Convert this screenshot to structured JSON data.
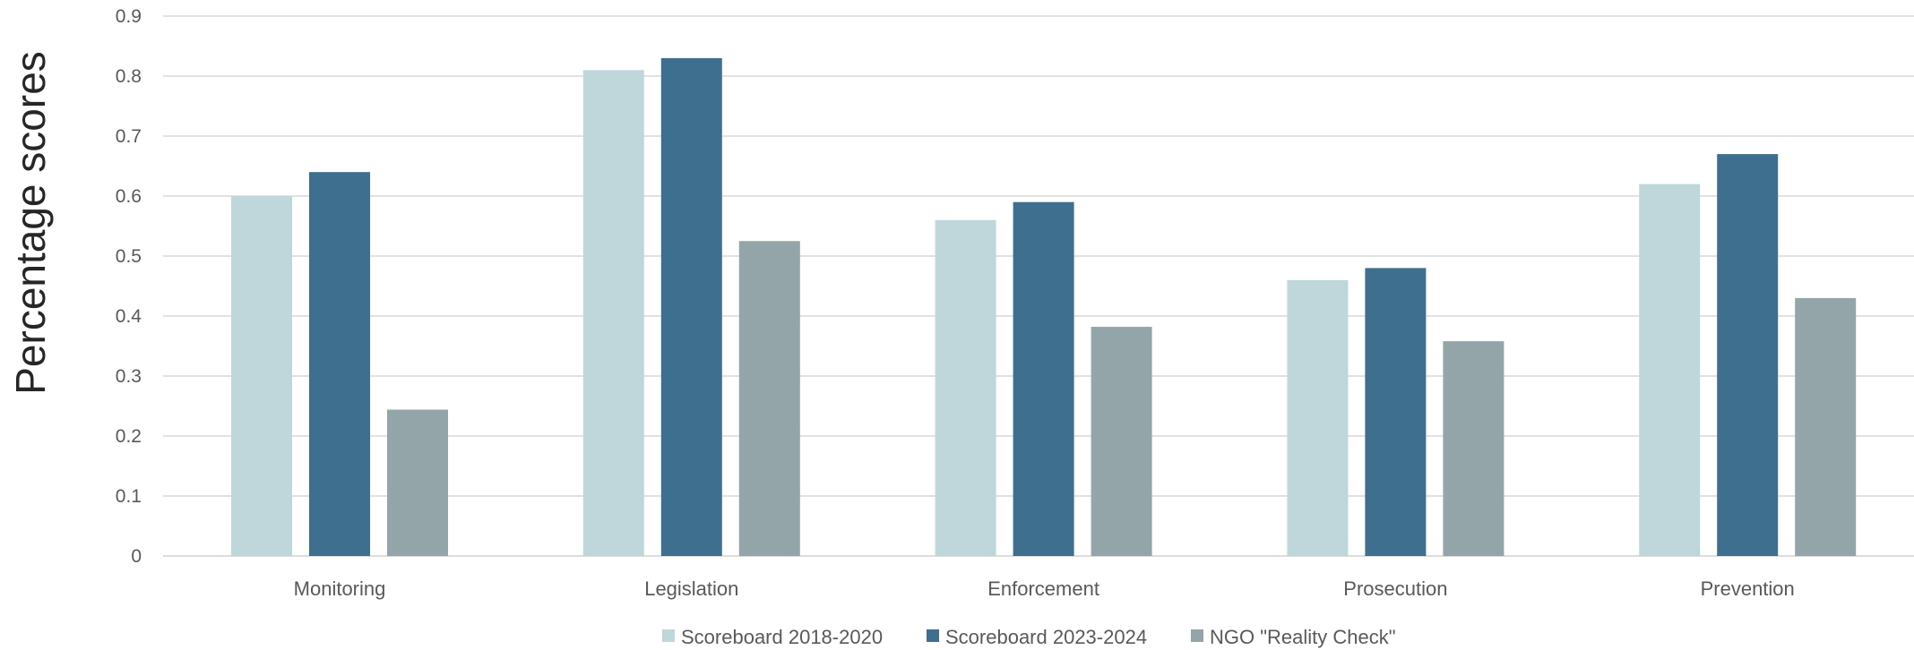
{
  "chart_data": {
    "type": "bar",
    "title": "",
    "xlabel": "",
    "ylabel": "Percentage scores",
    "ylim": [
      0,
      0.9
    ],
    "yticks": [
      "0",
      "0.1",
      "0.2",
      "0.3",
      "0.4",
      "0.5",
      "0.6",
      "0.7",
      "0.8",
      "0.9"
    ],
    "grid": true,
    "legend_position": "bottom",
    "categories": [
      "Monitoring",
      "Legislation",
      "Enforcement",
      "Prosecution",
      "Prevention"
    ],
    "series": [
      {
        "name": "Scoreboard 2018-2020",
        "color": "#bfd7db",
        "values": [
          0.6,
          0.81,
          0.56,
          0.46,
          0.62
        ]
      },
      {
        "name": "Scoreboard 2023-2024",
        "color": "#3e6f8e",
        "values": [
          0.64,
          0.83,
          0.59,
          0.48,
          0.67
        ]
      },
      {
        "name": "NGO \"Reality Check\"",
        "color": "#93a5a8",
        "values": [
          0.244,
          0.525,
          0.382,
          0.358,
          0.43
        ]
      }
    ]
  }
}
